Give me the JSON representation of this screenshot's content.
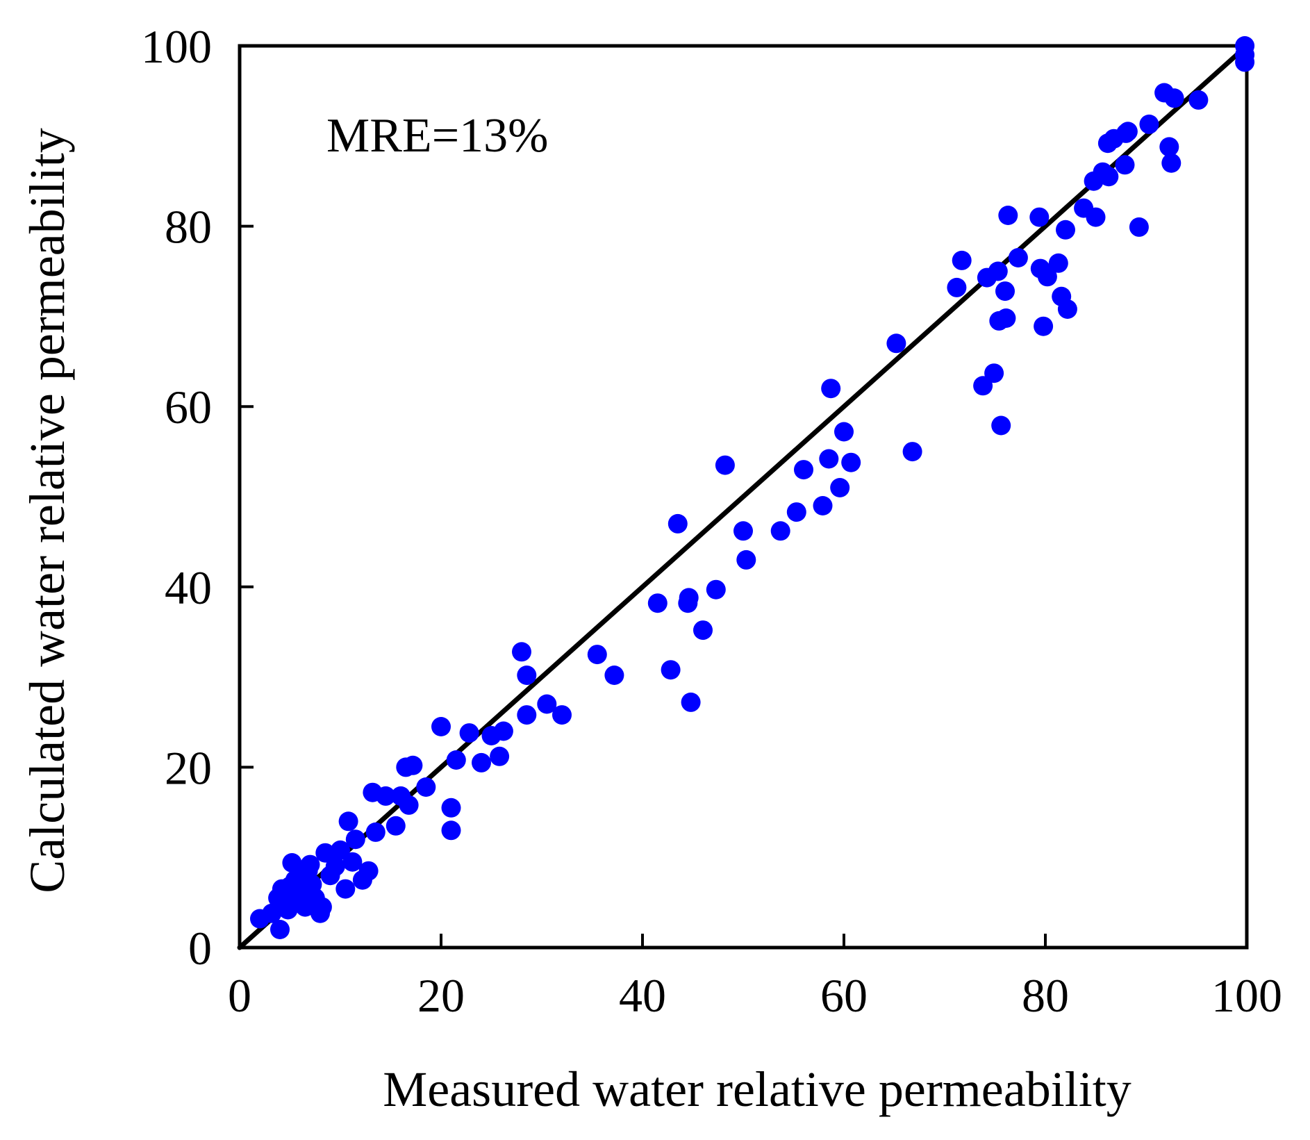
{
  "chart_data": {
    "type": "scatter",
    "title": "",
    "xlabel": "Measured water relative permeability",
    "ylabel": "Calculated water relative permeability",
    "xlim": [
      0,
      100
    ],
    "ylim": [
      0,
      100
    ],
    "xticks": [
      0,
      20,
      40,
      60,
      80,
      100
    ],
    "yticks": [
      0,
      20,
      40,
      60,
      80,
      100
    ],
    "grid": false,
    "annotation": "MRE=13%",
    "marker_color": "#0000ff",
    "line_color": "#000000",
    "reference_line": {
      "from": [
        0,
        0
      ],
      "to": [
        100,
        100
      ]
    },
    "series": [
      {
        "name": "Data",
        "points": [
          [
            2.0,
            3.2
          ],
          [
            3.2,
            3.8
          ],
          [
            3.8,
            5.5
          ],
          [
            4.0,
            2.0
          ],
          [
            4.2,
            6.5
          ],
          [
            4.5,
            5.0
          ],
          [
            4.8,
            4.2
          ],
          [
            5.0,
            6.8
          ],
          [
            5.2,
            9.4
          ],
          [
            5.5,
            7.5
          ],
          [
            5.8,
            5.7
          ],
          [
            6.0,
            6.2
          ],
          [
            6.2,
            8.0
          ],
          [
            6.5,
            4.5
          ],
          [
            6.8,
            8.5
          ],
          [
            7.0,
            9.2
          ],
          [
            7.2,
            7.0
          ],
          [
            7.5,
            5.5
          ],
          [
            8.0,
            3.8
          ],
          [
            8.2,
            4.5
          ],
          [
            8.5,
            10.5
          ],
          [
            9.0,
            8.0
          ],
          [
            9.5,
            9.0
          ],
          [
            10.0,
            10.8
          ],
          [
            10.5,
            6.5
          ],
          [
            10.8,
            14.0
          ],
          [
            11.2,
            9.5
          ],
          [
            11.5,
            12.0
          ],
          [
            12.2,
            7.5
          ],
          [
            12.8,
            8.5
          ],
          [
            13.2,
            17.2
          ],
          [
            13.5,
            12.8
          ],
          [
            14.5,
            16.8
          ],
          [
            15.5,
            13.5
          ],
          [
            16.0,
            16.8
          ],
          [
            16.5,
            20.0
          ],
          [
            16.8,
            15.8
          ],
          [
            17.2,
            20.2
          ],
          [
            18.5,
            17.8
          ],
          [
            20.0,
            24.5
          ],
          [
            21.0,
            15.5
          ],
          [
            21.0,
            13.0
          ],
          [
            21.5,
            20.8
          ],
          [
            22.8,
            23.8
          ],
          [
            24.0,
            20.5
          ],
          [
            25.0,
            23.5
          ],
          [
            25.8,
            21.2
          ],
          [
            26.2,
            24.0
          ],
          [
            28.0,
            32.8
          ],
          [
            28.5,
            25.8
          ],
          [
            28.5,
            30.2
          ],
          [
            30.5,
            27.0
          ],
          [
            32.0,
            25.8
          ],
          [
            35.5,
            32.5
          ],
          [
            37.2,
            30.2
          ],
          [
            41.5,
            38.2
          ],
          [
            42.8,
            30.8
          ],
          [
            43.5,
            47.0
          ],
          [
            44.5,
            38.2
          ],
          [
            44.6,
            38.8
          ],
          [
            44.8,
            27.2
          ],
          [
            46.0,
            35.2
          ],
          [
            47.3,
            39.7
          ],
          [
            48.2,
            53.5
          ],
          [
            50.0,
            46.2
          ],
          [
            50.3,
            43.0
          ],
          [
            53.7,
            46.2
          ],
          [
            55.3,
            48.3
          ],
          [
            56.0,
            53.0
          ],
          [
            57.9,
            49.0
          ],
          [
            58.5,
            54.2
          ],
          [
            58.7,
            62.0
          ],
          [
            59.6,
            51.0
          ],
          [
            60.0,
            57.2
          ],
          [
            60.7,
            53.8
          ],
          [
            65.2,
            67.0
          ],
          [
            66.8,
            55.0
          ],
          [
            71.2,
            73.2
          ],
          [
            71.7,
            76.2
          ],
          [
            73.8,
            62.3
          ],
          [
            74.2,
            74.3
          ],
          [
            74.9,
            63.7
          ],
          [
            75.3,
            75.0
          ],
          [
            75.4,
            69.5
          ],
          [
            75.6,
            57.9
          ],
          [
            76.0,
            72.8
          ],
          [
            76.1,
            69.8
          ],
          [
            76.3,
            81.2
          ],
          [
            77.3,
            76.5
          ],
          [
            79.4,
            81.0
          ],
          [
            79.5,
            75.3
          ],
          [
            79.8,
            68.9
          ],
          [
            80.2,
            74.4
          ],
          [
            81.3,
            75.9
          ],
          [
            81.6,
            72.2
          ],
          [
            82.0,
            79.6
          ],
          [
            82.2,
            70.8
          ],
          [
            83.8,
            82.0
          ],
          [
            84.8,
            85.0
          ],
          [
            85.0,
            81.0
          ],
          [
            85.7,
            86.0
          ],
          [
            86.2,
            89.2
          ],
          [
            86.3,
            85.5
          ],
          [
            86.8,
            89.7
          ],
          [
            87.9,
            86.8
          ],
          [
            88.0,
            90.3
          ],
          [
            88.2,
            90.5
          ],
          [
            89.3,
            79.9
          ],
          [
            90.3,
            91.3
          ],
          [
            91.8,
            94.8
          ],
          [
            92.3,
            88.8
          ],
          [
            92.5,
            87.0
          ],
          [
            92.8,
            94.2
          ],
          [
            95.2,
            94.0
          ],
          [
            99.8,
            100.0
          ],
          [
            99.8,
            99.0
          ],
          [
            99.8,
            98.2
          ]
        ]
      }
    ]
  }
}
